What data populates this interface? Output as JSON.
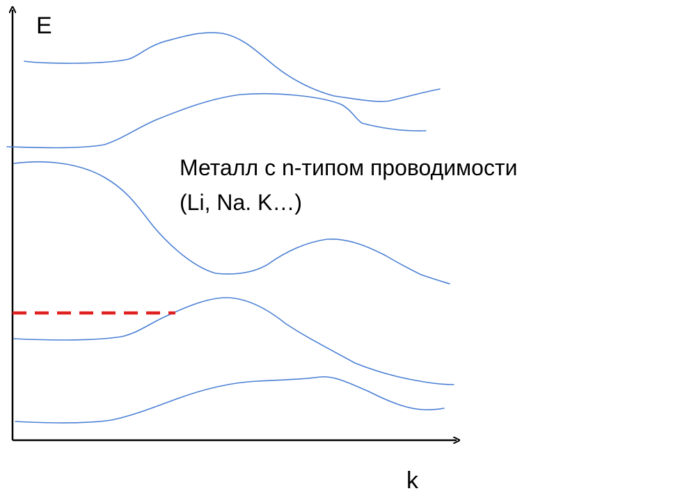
{
  "diagram": {
    "y_axis_label": "E",
    "x_axis_label": "k",
    "caption_line1": "Металл с n-типом проводимости",
    "caption_line2": "(Li, Na. K…)",
    "band_color": "#4A7FD4",
    "fermi_level_color": "#E02020",
    "axis_color": "#000000"
  }
}
